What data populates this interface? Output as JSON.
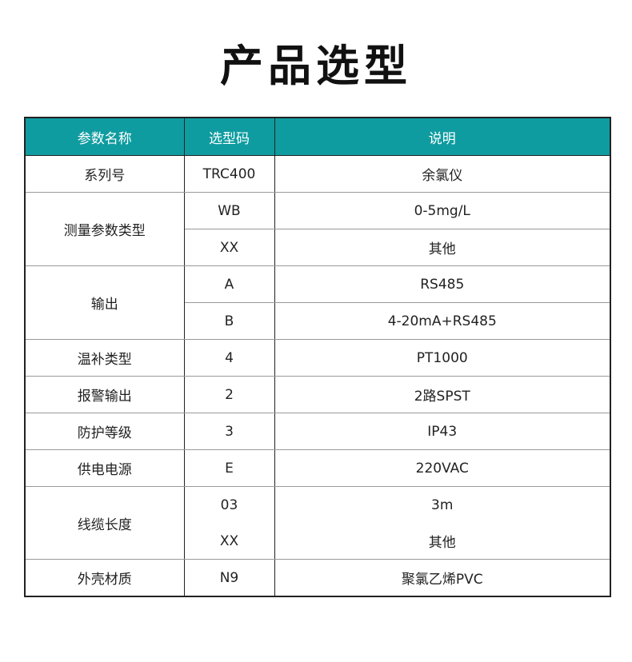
{
  "title": "产品选型",
  "header_color": "#0f9ca0",
  "columns": [
    "参数名称",
    "选型码",
    "说明"
  ],
  "rows": [
    {
      "param": "系列号",
      "options": [
        {
          "code": "TRC400",
          "desc": "余氯仪"
        }
      ]
    },
    {
      "param": "测量参数类型",
      "options": [
        {
          "code": "WB",
          "desc": "0-5mg/L"
        },
        {
          "code": "XX",
          "desc": "其他"
        }
      ]
    },
    {
      "param": "输出",
      "options": [
        {
          "code": "A",
          "desc": "RS485"
        },
        {
          "code": "B",
          "desc": "4-20mA+RS485"
        }
      ]
    },
    {
      "param": "温补类型",
      "options": [
        {
          "code": "4",
          "desc": "PT1000"
        }
      ]
    },
    {
      "param": "报警输出",
      "options": [
        {
          "code": "2",
          "desc": "2路SPST"
        }
      ]
    },
    {
      "param": "防护等级",
      "options": [
        {
          "code": "3",
          "desc": "IP43"
        }
      ]
    },
    {
      "param": "供电电源",
      "options": [
        {
          "code": "E",
          "desc": "220VAC"
        }
      ]
    },
    {
      "param": "线缆长度",
      "options": [
        {
          "code": "03",
          "desc": "3m"
        },
        {
          "code": "XX",
          "desc": "其他"
        }
      ]
    },
    {
      "param": "外壳材质",
      "options": [
        {
          "code": "N9",
          "desc": "聚氯乙烯PVC"
        }
      ]
    }
  ]
}
